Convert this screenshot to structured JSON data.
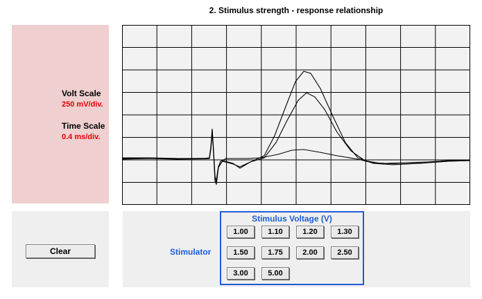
{
  "title": "2. Stimulus strength - response relationship",
  "scale_panel": {
    "volt_label": "Volt Scale",
    "volt_value": "250 mV/div.",
    "time_label": "Time Scale",
    "time_value": "0.4 ms/div.",
    "value_color": "#e00000"
  },
  "clear_panel": {
    "clear_label": "Clear"
  },
  "stimulator": {
    "label": "Stimulator",
    "box_title": "Stimulus Voltage (V)",
    "voltages": [
      "1.00",
      "1.10",
      "1.20",
      "1.30",
      "1.50",
      "1.75",
      "2.00",
      "2.50",
      "3.00",
      "5.00"
    ]
  },
  "colors": {
    "accent": "#1f5bd8",
    "scope_bg": "#f2f2f2",
    "panel_pink": "#efcfd0"
  }
}
